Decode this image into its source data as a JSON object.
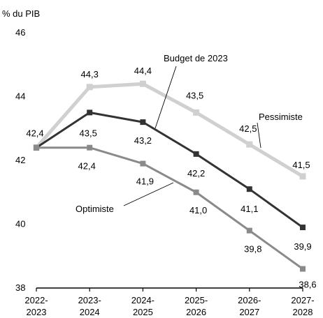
{
  "chart_data": {
    "type": "line",
    "ylabel": "% du PIB",
    "ylim": [
      38,
      46
    ],
    "yticks": [
      38,
      40,
      42,
      44,
      46
    ],
    "categories": [
      [
        "2022-",
        "2023"
      ],
      [
        "2023-",
        "2024"
      ],
      [
        "2024-",
        "2025"
      ],
      [
        "2025-",
        "2026"
      ],
      [
        "2026-",
        "2027"
      ],
      [
        "2027-",
        "2028"
      ]
    ],
    "grid": false,
    "legend": "none",
    "series": [
      {
        "name": "Pessimiste",
        "values": [
          42.4,
          44.3,
          44.4,
          43.5,
          42.5,
          41.5
        ],
        "labels": [
          "42,4",
          "44,3",
          "44,4",
          "43,5",
          "42,5",
          "41,5"
        ],
        "color": "#d0d0d0"
      },
      {
        "name": "Budget de 2023",
        "values": [
          42.4,
          43.5,
          43.2,
          42.2,
          41.1,
          39.9
        ],
        "labels": [
          "",
          "43,5",
          "43,2",
          "42,2",
          "41,1",
          "39,9"
        ],
        "color": "#333333"
      },
      {
        "name": "Optimiste",
        "values": [
          42.4,
          42.4,
          41.9,
          41.0,
          39.8,
          38.6
        ],
        "labels": [
          "",
          "42,4",
          "41,9",
          "41,0",
          "39,8",
          "38,6"
        ],
        "color": "#8a8a8a"
      }
    ]
  }
}
